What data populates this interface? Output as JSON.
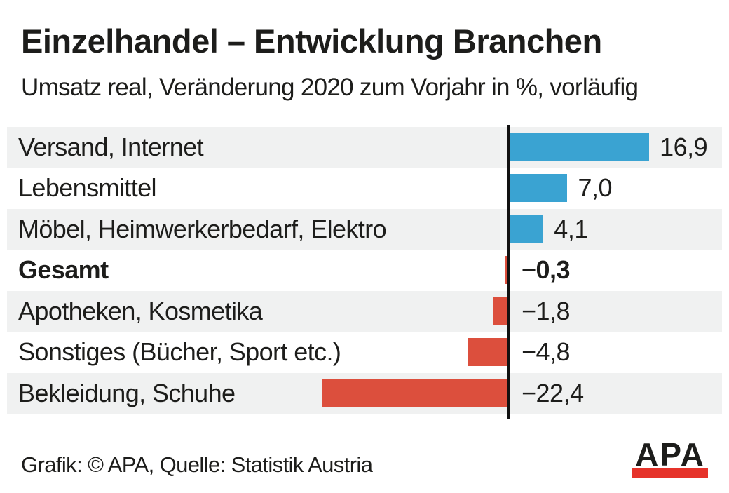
{
  "header": {
    "title": "Einzelhandel – Entwicklung Branchen",
    "subtitle": "Umsatz real, Veränderung 2020 zum Vorjahr in %, vorläufig"
  },
  "chart_data": {
    "type": "bar",
    "orientation": "horizontal",
    "title": "Einzelhandel – Entwicklung Branchen",
    "subtitle": "Umsatz real, Veränderung 2020 zum Vorjahr in %, vorläufig",
    "unit": "%",
    "categories": [
      "Versand, Internet",
      "Lebensmittel",
      "Möbel, Heimwerkerbedarf, Elektro",
      "Gesamt",
      "Apotheken, Kosmetika",
      "Sonstiges (Bücher, Sport etc.)",
      "Bekleidung, Schuhe"
    ],
    "values": [
      16.9,
      7.0,
      4.1,
      -0.3,
      -1.8,
      -4.8,
      -22.4
    ],
    "value_labels": [
      "16,9",
      "7,0",
      "4,1",
      "−0,3",
      "−1,8",
      "−4,8",
      "−22,4"
    ],
    "emphasis_index": 3,
    "emphasized_category": "Gesamt",
    "xlim": [
      -22.4,
      16.9
    ],
    "zero_line": true,
    "grid": false,
    "legend": "none",
    "colors": {
      "positive": "#3aa3d2",
      "negative": "#dc4f3d",
      "stripe": "#f0f1f1",
      "axis": "#111111",
      "logo_red": "#e6332a"
    }
  },
  "footer": {
    "credit": "Grafik: © APA, Quelle: Statistik Austria",
    "logo_text": "APA"
  }
}
